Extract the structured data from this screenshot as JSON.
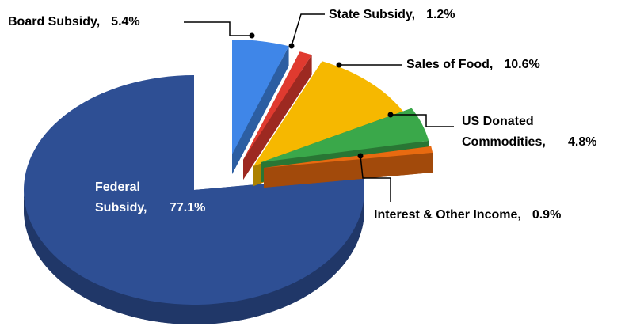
{
  "chart_data": {
    "type": "pie",
    "categories": [
      "Board Subsidy,",
      "State Subsidy,",
      "Sales of Food,",
      "US Donated Commodities,",
      "Interest & Other Income,",
      "Federal Subsidy,"
    ],
    "values": [
      5.4,
      1.2,
      10.6,
      4.8,
      0.9,
      77.1
    ],
    "value_labels": [
      "5.4%",
      "1.2%",
      "10.6%",
      "4.8%",
      "0.9%",
      "77.1%"
    ],
    "colors": [
      "#3f86e8",
      "#e03a2f",
      "#f6b800",
      "#3aa84a",
      "#e86a10",
      "#2e4f94"
    ]
  }
}
